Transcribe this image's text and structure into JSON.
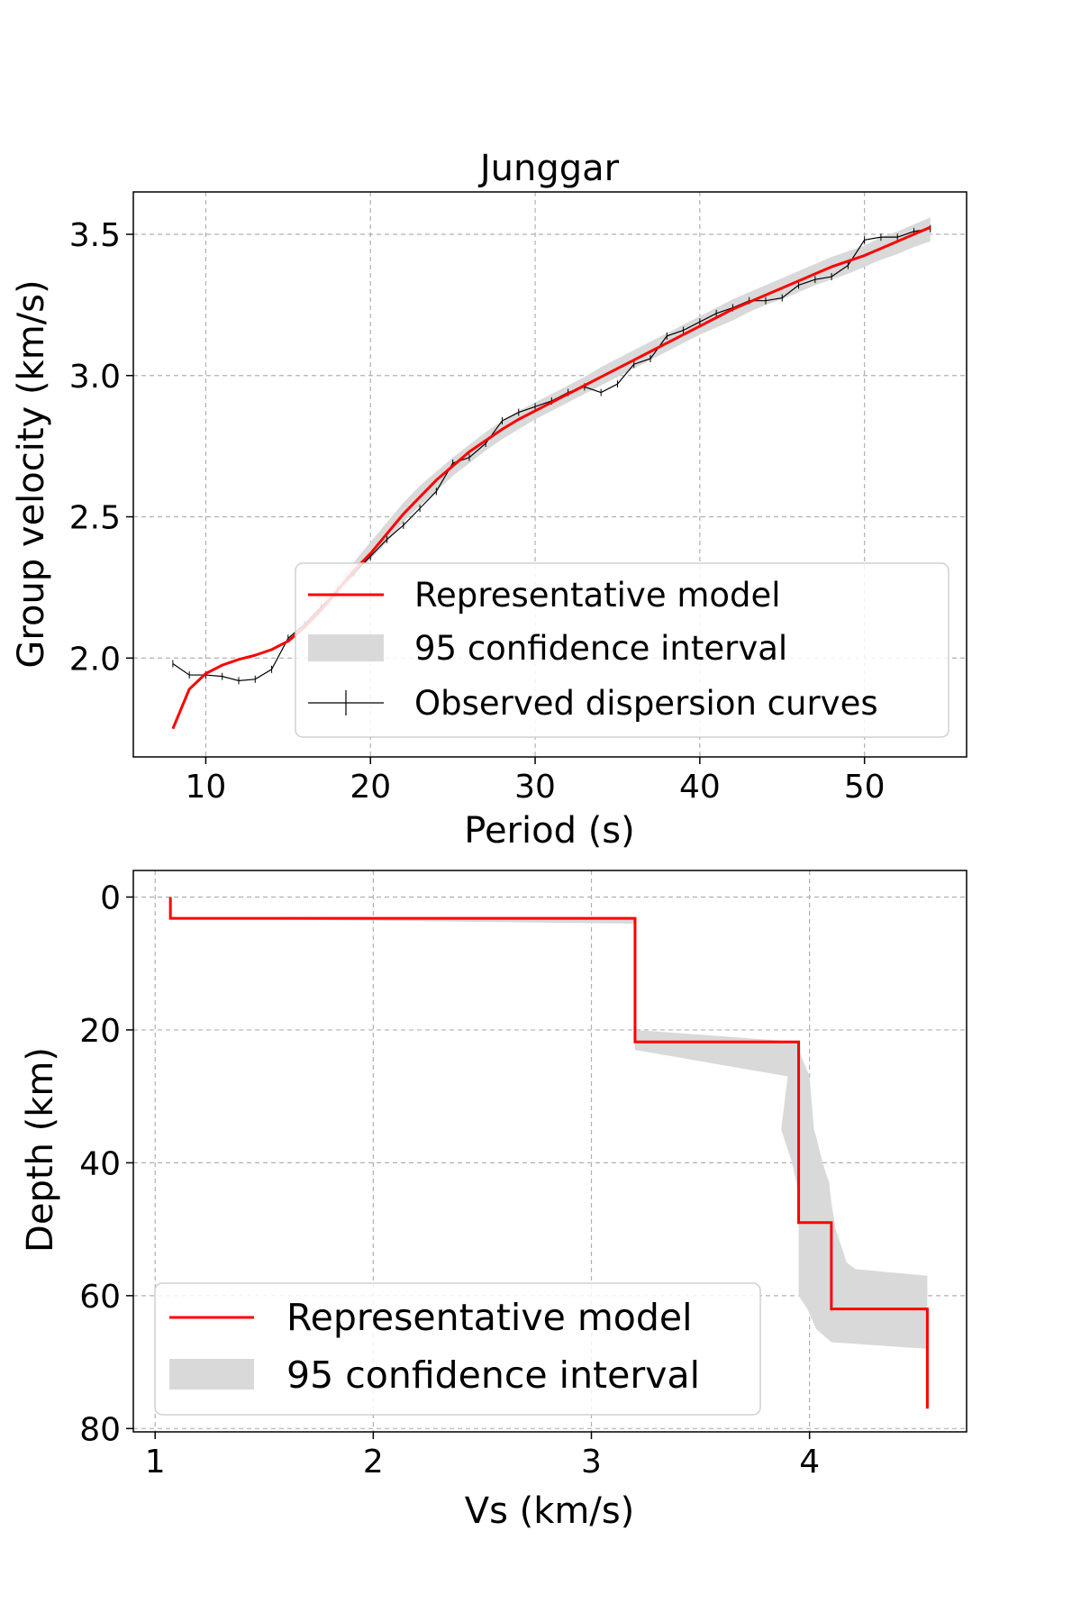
{
  "chart_data": [
    {
      "type": "line",
      "title": "Junggar",
      "xlabel": "Period (s)",
      "ylabel": "Group velocity (km/s)",
      "xlim": [
        5.6,
        56.2
      ],
      "ylim": [
        1.65,
        3.65
      ],
      "xticks": [
        10,
        20,
        30,
        40,
        50
      ],
      "yticks": [
        2.0,
        2.5,
        3.0,
        3.5
      ],
      "xtick_labels": [
        "10",
        "20",
        "30",
        "40",
        "50"
      ],
      "ytick_labels": [
        "2.0",
        "2.5",
        "3.0",
        "3.5"
      ],
      "grid": true,
      "legend": "lower-right",
      "legend_entries": [
        "Representative model",
        "95 confidence interval",
        "Observed dispersion curves"
      ],
      "colors": {
        "model": "#ff0000",
        "band": "#d9d9d9",
        "observed": "#000000",
        "grid": "#b0b0b0"
      },
      "series": [
        {
          "name": "Representative model",
          "x": [
            8,
            9,
            10,
            11,
            12,
            13,
            14,
            15,
            16,
            17,
            18,
            19,
            20,
            21,
            22,
            23,
            24,
            25,
            26,
            27,
            28,
            29,
            30,
            31,
            32,
            33,
            34,
            35,
            36,
            37,
            38,
            39,
            40,
            41,
            42,
            43,
            44,
            45,
            46,
            47,
            48,
            49,
            50,
            51,
            52,
            53,
            54
          ],
          "y": [
            1.75,
            1.89,
            1.945,
            1.975,
            1.995,
            2.01,
            2.03,
            2.06,
            2.11,
            2.17,
            2.24,
            2.31,
            2.37,
            2.44,
            2.51,
            2.57,
            2.63,
            2.68,
            2.73,
            2.77,
            2.81,
            2.845,
            2.875,
            2.905,
            2.935,
            2.965,
            2.995,
            3.025,
            3.055,
            3.085,
            3.115,
            3.145,
            3.175,
            3.205,
            3.235,
            3.26,
            3.285,
            3.31,
            3.335,
            3.36,
            3.385,
            3.405,
            3.425,
            3.45,
            3.475,
            3.5,
            3.525
          ]
        },
        {
          "name": "95 confidence interval",
          "x": [
            15,
            16,
            17,
            18,
            19,
            20,
            21,
            22,
            23,
            24,
            25,
            26,
            27,
            28,
            29,
            30,
            31,
            32,
            33,
            34,
            35,
            36,
            37,
            38,
            39,
            40,
            41,
            42,
            43,
            44,
            45,
            46,
            47,
            48,
            49,
            50,
            51,
            52,
            53,
            54
          ],
          "lower": [
            2.05,
            2.1,
            2.16,
            2.22,
            2.29,
            2.35,
            2.41,
            2.48,
            2.54,
            2.59,
            2.645,
            2.69,
            2.735,
            2.775,
            2.81,
            2.845,
            2.875,
            2.905,
            2.935,
            2.965,
            2.995,
            3.025,
            3.055,
            3.085,
            3.115,
            3.145,
            3.17,
            3.195,
            3.225,
            3.25,
            3.27,
            3.295,
            3.32,
            3.34,
            3.36,
            3.385,
            3.41,
            3.43,
            3.455,
            3.475
          ],
          "upper": [
            2.07,
            2.12,
            2.19,
            2.265,
            2.34,
            2.41,
            2.48,
            2.55,
            2.61,
            2.66,
            2.71,
            2.755,
            2.8,
            2.84,
            2.875,
            2.905,
            2.935,
            2.965,
            2.995,
            3.03,
            3.06,
            3.09,
            3.12,
            3.15,
            3.18,
            3.21,
            3.24,
            3.27,
            3.295,
            3.32,
            3.345,
            3.37,
            3.395,
            3.42,
            3.44,
            3.46,
            3.49,
            3.51,
            3.535,
            3.56
          ]
        },
        {
          "name": "Observed dispersion curves",
          "x": [
            8,
            9,
            10,
            11,
            12,
            13,
            14,
            15,
            16,
            17,
            18,
            19,
            20,
            21,
            22,
            23,
            24,
            25,
            26,
            27,
            28,
            29,
            30,
            31,
            32,
            33,
            34,
            35,
            36,
            37,
            38,
            39,
            40,
            41,
            42,
            43,
            44,
            45,
            46,
            47,
            48,
            49,
            50,
            51,
            52,
            53,
            54
          ],
          "y": [
            1.98,
            1.94,
            1.94,
            1.935,
            1.92,
            1.925,
            1.96,
            2.07,
            2.12,
            2.18,
            2.24,
            2.3,
            2.36,
            2.42,
            2.47,
            2.53,
            2.59,
            2.69,
            2.71,
            2.76,
            2.84,
            2.87,
            2.89,
            2.91,
            2.94,
            2.96,
            2.94,
            2.97,
            3.04,
            3.06,
            3.14,
            3.16,
            3.19,
            3.22,
            3.24,
            3.265,
            3.265,
            3.275,
            3.32,
            3.34,
            3.35,
            3.39,
            3.48,
            3.49,
            3.49,
            3.51,
            3.52
          ]
        }
      ]
    },
    {
      "type": "line",
      "title": "",
      "xlabel": "Vs (km/s)",
      "ylabel": "Depth (km)",
      "xlim": [
        0.9,
        4.72
      ],
      "ylim": [
        80.5,
        -4
      ],
      "xticks": [
        1,
        2,
        3,
        4
      ],
      "yticks": [
        0,
        20,
        40,
        60,
        80
      ],
      "xtick_labels": [
        "1",
        "2",
        "3",
        "4"
      ],
      "ytick_labels": [
        "0",
        "20",
        "40",
        "60",
        "80"
      ],
      "grid": true,
      "legend": "lower-left",
      "legend_entries": [
        "Representative model",
        "95 confidence interval"
      ],
      "colors": {
        "model": "#ff0000",
        "band": "#d9d9d9",
        "grid": "#b0b0b0"
      },
      "series": [
        {
          "name": "Representative model",
          "vs": [
            1.07,
            1.07,
            3.2,
            3.2,
            3.95,
            3.95,
            4.1,
            4.1,
            4.54,
            4.54
          ],
          "depth": [
            0,
            3.2,
            3.2,
            21.8,
            21.8,
            49,
            49,
            62,
            62,
            77
          ]
        },
        {
          "name": "95 confidence interval",
          "depth": [
            3.2,
            4,
            20,
            21.8,
            23,
            27,
            35,
            36,
            40,
            43,
            46,
            48,
            50,
            55,
            56,
            57,
            60,
            62,
            65,
            67,
            68
          ],
          "vs_low": [
            1.07,
            3.2,
            3.2,
            3.2,
            3.2,
            3.9,
            3.87,
            3.88,
            3.92,
            3.94,
            3.95,
            3.95,
            3.95,
            3.95,
            3.95,
            3.95,
            3.95,
            3.99,
            4.03,
            4.1,
            4.54
          ],
          "vs_high": [
            3.2,
            3.2,
            3.2,
            3.95,
            3.95,
            4.0,
            4.02,
            4.03,
            4.06,
            4.09,
            4.1,
            4.11,
            4.12,
            4.17,
            4.21,
            4.54,
            4.54,
            4.54,
            4.54,
            4.54,
            4.54
          ]
        }
      ]
    }
  ]
}
